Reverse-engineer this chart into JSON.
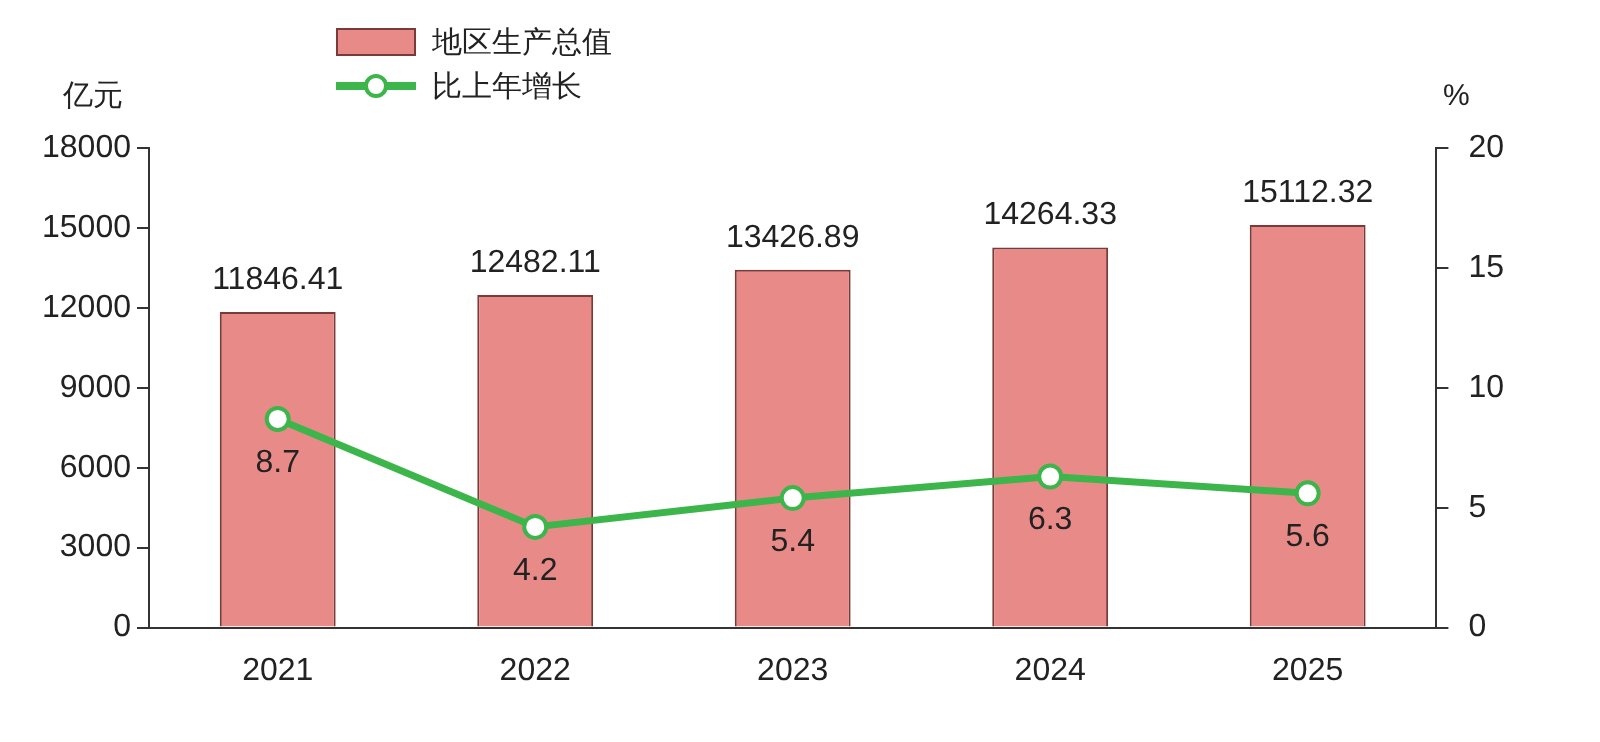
{
  "chart_data": {
    "type": "bar",
    "categories": [
      "2021",
      "2022",
      "2023",
      "2024",
      "2025"
    ],
    "ylabel": "亿元",
    "y2label": "%",
    "ylim": [
      0,
      18000
    ],
    "yticks": [
      0,
      3000,
      6000,
      9000,
      12000,
      15000,
      18000
    ],
    "y2lim": [
      0,
      20
    ],
    "y2ticks": [
      0,
      5,
      10,
      15,
      20
    ],
    "series": [
      {
        "name": "地区生产总值",
        "color": "#e88a87",
        "values": [
          11846.41,
          12482.11,
          13426.89,
          14264.33,
          15112.32
        ]
      },
      {
        "name": "比上年增长",
        "type": "line",
        "axis": "y2",
        "color": "#3cb54a",
        "values": [
          8.7,
          4.2,
          5.4,
          6.3,
          5.6
        ]
      }
    ],
    "data_labels": true,
    "legend": "top left",
    "grid": false,
    "marker": "circle"
  }
}
